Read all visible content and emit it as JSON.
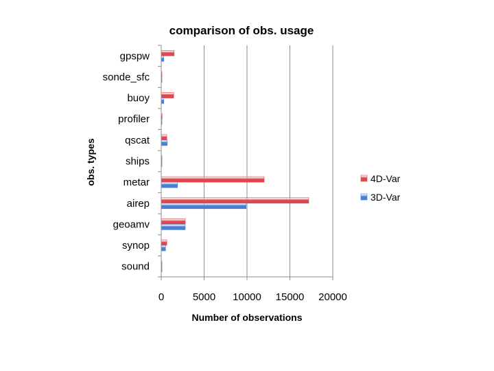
{
  "chart_data": {
    "type": "bar",
    "orientation": "horizontal",
    "title": "comparison of obs. usage",
    "xlabel": "Number of observations",
    "ylabel": "obs. types",
    "categories": [
      "gpspw",
      "sonde_sfc",
      "buoy",
      "profiler",
      "qscat",
      "ships",
      "metar",
      "airep",
      "geoamv",
      "synop",
      "sound"
    ],
    "series": [
      {
        "name": "4D-Var",
        "color": "#e0474c",
        "values": [
          1500,
          50,
          1450,
          100,
          650,
          50,
          12000,
          17200,
          2800,
          650,
          50
        ]
      },
      {
        "name": "3D-Var",
        "color": "#4a7fd4",
        "values": [
          300,
          20,
          300,
          20,
          700,
          20,
          1900,
          9900,
          2800,
          500,
          20
        ]
      }
    ],
    "xlim": [
      0,
      20000
    ],
    "xticks": [
      "0",
      "5000",
      "10000",
      "15000",
      "20000"
    ],
    "xtick_values": [
      0,
      5000,
      10000,
      15000,
      20000
    ],
    "grid": "vertical",
    "legend": "right"
  }
}
